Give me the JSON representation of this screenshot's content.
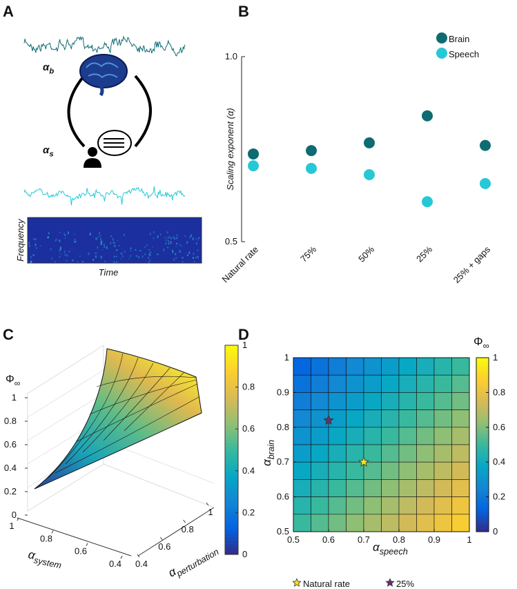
{
  "illustration": {
    "panel_label": "A",
    "brain_label": {
      "symbol": "α",
      "sub": "b"
    },
    "speech_label": {
      "symbol": "α",
      "sub": "s"
    },
    "ylabel": "Frequency",
    "xlabel": "Time"
  },
  "chart_data": [
    {
      "type": "scatter",
      "panel_label": "B",
      "ylabel": "Scaling exponent (α)",
      "categories": [
        "Natural rate",
        "75%",
        "50%",
        "25%",
        "25% + gaps"
      ],
      "series": [
        {
          "name": "Brain",
          "color": "#0f6b72",
          "values": [
            0.737,
            0.746,
            0.767,
            0.84,
            0.76
          ]
        },
        {
          "name": "Speech",
          "color": "#27c8d6",
          "values": [
            0.705,
            0.698,
            0.681,
            0.608,
            0.657
          ]
        }
      ],
      "ylim": [
        0.5,
        1.0
      ],
      "yticks": [
        0.5,
        {
          "value": 1,
          "label": "1.0"
        }
      ],
      "legend": "upper right"
    },
    {
      "type": "surface",
      "panel_label": "C",
      "zlabel": {
        "symbol": "Φ",
        "sub": "∞"
      },
      "xlabel": {
        "symbol": "α",
        "sub": "system"
      },
      "ylabel": {
        "symbol": "α",
        "sub": "perturbation"
      },
      "xticks": [
        1,
        0.8,
        0.6,
        0.4
      ],
      "yticks": [
        0.4,
        0.6,
        0.8,
        1
      ],
      "zticks": [
        0,
        0.2,
        0.4,
        0.6,
        0.8,
        1
      ],
      "clim": [
        0,
        1
      ],
      "colorbar_ticks": [
        0,
        0.2,
        0.4,
        0.6,
        0.8,
        1
      ],
      "colormap": [
        "#352a87",
        "#0363e1",
        "#1485d4",
        "#06a7c6",
        "#38b99e",
        "#92bf73",
        "#d9ba56",
        "#fcce2e",
        "#f9fb0e"
      ]
    },
    {
      "type": "heatmap",
      "panel_label": "D",
      "xlabel": {
        "symbol": "α",
        "sub": "speech"
      },
      "ylabel": {
        "symbol": "α",
        "sub": "brain"
      },
      "xlim": [
        0.5,
        1
      ],
      "ylim": [
        0.5,
        1
      ],
      "xticks": [
        0.5,
        0.6,
        0.7,
        0.8,
        0.9,
        1
      ],
      "yticks": [
        0.5,
        0.6,
        0.7,
        0.8,
        0.9,
        1
      ],
      "z": [
        [
          0.14,
          0.18,
          0.22,
          0.26,
          0.3,
          0.34,
          0.38,
          0.42,
          0.46,
          0.5
        ],
        [
          0.18,
          0.22,
          0.26,
          0.3,
          0.34,
          0.38,
          0.42,
          0.46,
          0.5,
          0.54
        ],
        [
          0.22,
          0.26,
          0.3,
          0.34,
          0.38,
          0.42,
          0.46,
          0.5,
          0.54,
          0.58
        ],
        [
          0.26,
          0.3,
          0.34,
          0.38,
          0.42,
          0.46,
          0.5,
          0.54,
          0.58,
          0.62
        ],
        [
          0.3,
          0.34,
          0.38,
          0.42,
          0.46,
          0.5,
          0.54,
          0.58,
          0.62,
          0.66
        ],
        [
          0.34,
          0.38,
          0.42,
          0.46,
          0.5,
          0.54,
          0.58,
          0.62,
          0.66,
          0.7
        ],
        [
          0.38,
          0.42,
          0.46,
          0.5,
          0.54,
          0.58,
          0.62,
          0.66,
          0.7,
          0.74
        ],
        [
          0.42,
          0.46,
          0.5,
          0.54,
          0.58,
          0.62,
          0.66,
          0.7,
          0.74,
          0.78
        ],
        [
          0.46,
          0.5,
          0.54,
          0.58,
          0.62,
          0.66,
          0.7,
          0.74,
          0.78,
          0.82
        ],
        [
          0.5,
          0.54,
          0.58,
          0.62,
          0.66,
          0.7,
          0.74,
          0.78,
          0.82,
          0.86
        ]
      ],
      "clim": [
        0,
        1
      ],
      "colorbar_ticks": [
        0,
        0.2,
        0.4,
        0.6,
        0.8,
        1
      ],
      "colorbar_label": {
        "symbol": "Φ",
        "sub": "∞"
      },
      "colormap": [
        "#352a87",
        "#0363e1",
        "#1485d4",
        "#06a7c6",
        "#38b99e",
        "#92bf73",
        "#d9ba56",
        "#fcce2e",
        "#f9fb0e"
      ],
      "markers": [
        {
          "name": "Natural rate",
          "x": 0.7,
          "y": 0.7,
          "color": "#f5e11a"
        },
        {
          "name": "25%",
          "x": 0.6,
          "y": 0.82,
          "color": "#6b2f6b"
        }
      ]
    }
  ]
}
